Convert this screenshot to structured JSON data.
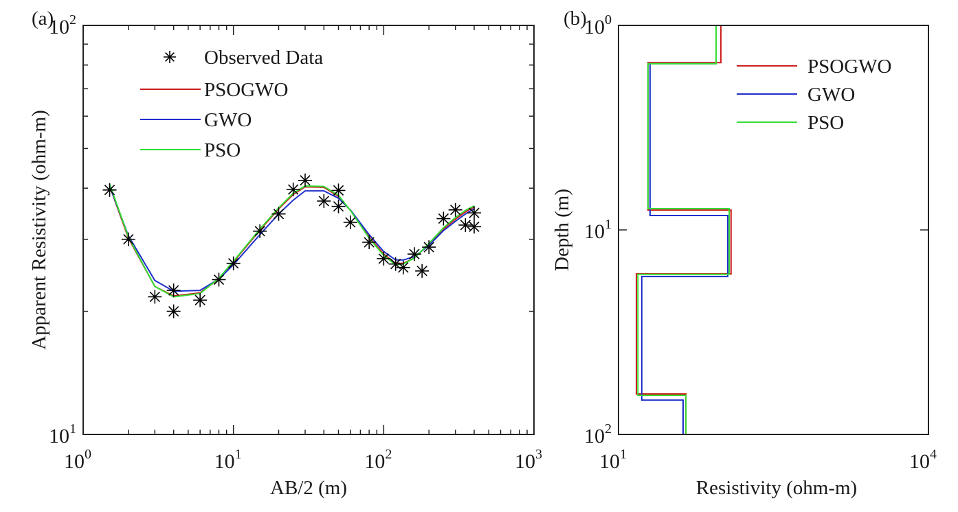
{
  "chart_data": [
    {
      "panel_label": "(a)",
      "type": "line",
      "title": "",
      "xlabel": "AB/2 (m)",
      "ylabel": "Apparent Resistivity (ohm-m)",
      "xscale": "log",
      "yscale": "log",
      "xlim": [
        1,
        1000
      ],
      "ylim": [
        10,
        100
      ],
      "x_ticks": [
        {
          "base": "10",
          "exp": "0",
          "value": 1
        },
        {
          "base": "10",
          "exp": "1",
          "value": 10
        },
        {
          "base": "10",
          "exp": "2",
          "value": 100
        },
        {
          "base": "10",
          "exp": "3",
          "value": 1000
        }
      ],
      "y_ticks": [
        {
          "base": "10",
          "exp": "1",
          "value": 10
        },
        {
          "base": "10",
          "exp": "2",
          "value": 100
        }
      ],
      "grid": false,
      "legend_position": "top-left",
      "observed": {
        "name": "Observed Data",
        "marker": "asterisk",
        "color": "#000000",
        "points": [
          [
            1.5,
            39.6
          ],
          [
            2,
            30.0
          ],
          [
            3,
            21.7
          ],
          [
            4,
            22.5
          ],
          [
            4,
            20.0
          ],
          [
            6,
            21.3
          ],
          [
            8,
            23.9
          ],
          [
            10,
            26.2
          ],
          [
            15,
            31.4
          ],
          [
            20,
            34.6
          ],
          [
            25,
            39.7
          ],
          [
            30,
            41.8
          ],
          [
            40,
            37.2
          ],
          [
            50,
            39.5
          ],
          [
            50,
            36.1
          ],
          [
            60,
            33.0
          ],
          [
            80,
            29.5
          ],
          [
            100,
            26.9
          ],
          [
            120,
            26.1
          ],
          [
            135,
            25.6
          ],
          [
            160,
            27.6
          ],
          [
            180,
            25.1
          ],
          [
            200,
            28.7
          ],
          [
            250,
            33.7
          ],
          [
            300,
            35.4
          ],
          [
            350,
            32.5
          ],
          [
            400,
            34.8
          ],
          [
            400,
            32.2
          ]
        ]
      },
      "series": [
        {
          "name": "PSOGWO",
          "color": "#cc1f1f",
          "x": [
            1.5,
            2,
            3,
            4,
            6,
            8,
            10,
            15,
            20,
            25,
            30,
            40,
            50,
            60,
            80,
            100,
            120,
            135,
            160,
            200,
            250,
            300,
            350,
            400
          ],
          "y": [
            40.5,
            30.2,
            23.0,
            21.8,
            22.2,
            24.0,
            26.4,
            31.6,
            35.6,
            38.6,
            40.3,
            40.2,
            38.2,
            35.3,
            30.4,
            27.6,
            26.2,
            26.2,
            27.0,
            29.2,
            31.8,
            33.6,
            35.0,
            36.0
          ]
        },
        {
          "name": "GWO",
          "color": "#1f2fcc",
          "x": [
            1.5,
            2,
            3,
            4,
            6,
            8,
            10,
            15,
            20,
            25,
            30,
            40,
            50,
            60,
            80,
            100,
            120,
            135,
            160,
            200,
            250,
            300,
            350,
            400
          ],
          "y": [
            40.5,
            30.6,
            23.8,
            22.4,
            22.5,
            24.0,
            26.0,
            30.8,
            34.6,
            37.4,
            39.4,
            39.4,
            37.8,
            35.4,
            30.8,
            28.0,
            26.7,
            26.7,
            27.2,
            29.0,
            31.5,
            33.2,
            34.6,
            35.6
          ]
        },
        {
          "name": "PSO",
          "color": "#33dd33",
          "x": [
            1.5,
            2,
            3,
            4,
            6,
            8,
            10,
            15,
            20,
            25,
            30,
            40,
            50,
            60,
            80,
            100,
            120,
            135,
            160,
            200,
            250,
            300,
            350,
            400
          ],
          "y": [
            41.0,
            30.4,
            23.0,
            21.7,
            22.1,
            24.1,
            26.5,
            31.8,
            35.8,
            38.9,
            40.5,
            40.4,
            38.4,
            35.3,
            30.2,
            27.4,
            26.0,
            26.1,
            27.0,
            29.3,
            32.0,
            33.9,
            35.3,
            36.2
          ]
        }
      ]
    },
    {
      "panel_label": "(b)",
      "type": "line",
      "title": "",
      "xlabel": "Resistivity (ohm-m)",
      "ylabel": "Depth (m)",
      "xscale": "log",
      "yscale": "log",
      "y_reversed": true,
      "xlim": [
        10,
        10000
      ],
      "ylim": [
        1,
        100
      ],
      "x_ticks": [
        {
          "base": "10",
          "exp": "1",
          "value": 10
        },
        {
          "base": "10",
          "exp": "4",
          "value": 10000
        }
      ],
      "y_ticks": [
        {
          "base": "10",
          "exp": "0",
          "value": 1
        },
        {
          "base": "10",
          "exp": "1",
          "value": 10
        },
        {
          "base": "10",
          "exp": "2",
          "value": 100
        }
      ],
      "grid": false,
      "legend_position": "top-right",
      "series": [
        {
          "name": "PSOGWO",
          "color": "#cc1f1f",
          "resistivity": [
            98,
            19.3,
            123,
            14.9,
            44.9
          ],
          "layer_bottoms": [
            1.52,
            8.0,
            16.4,
            63.4
          ]
        },
        {
          "name": "GWO",
          "color": "#1f2fcc",
          "resistivity": [
            88,
            20.2,
            114,
            16.8,
            42.2
          ],
          "layer_bottoms": [
            1.54,
            8.5,
            16.9,
            67.9
          ]
        },
        {
          "name": "PSO",
          "color": "#33dd33",
          "resistivity": [
            88,
            19.3,
            118,
            15.4,
            44.9
          ],
          "layer_bottoms": [
            1.54,
            7.87,
            16.5,
            64.4
          ]
        }
      ]
    }
  ]
}
